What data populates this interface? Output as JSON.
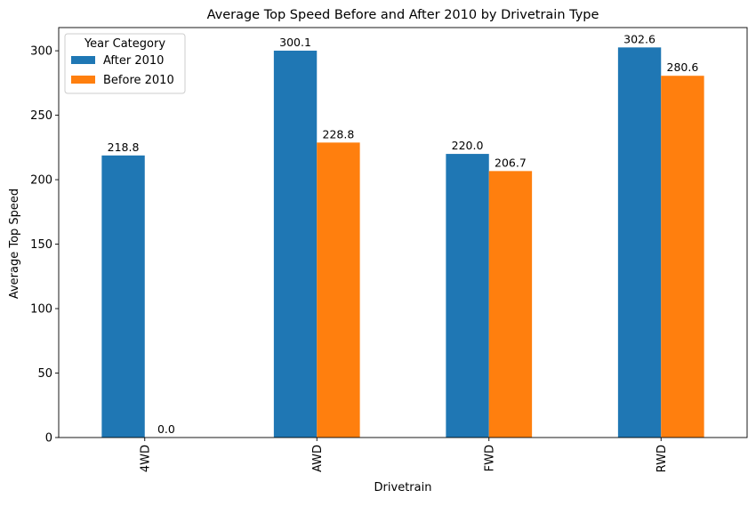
{
  "chart_data": {
    "type": "bar",
    "title": "Average Top Speed Before and After 2010 by Drivetrain Type",
    "xlabel": "Drivetrain",
    "ylabel": "Average Top Speed",
    "categories": [
      "4WD",
      "AWD",
      "FWD",
      "RWD"
    ],
    "series": [
      {
        "name": "After 2010",
        "values": [
          218.8,
          300.1,
          220.0,
          302.6
        ],
        "color": "#1f77b4"
      },
      {
        "name": "Before 2010",
        "values": [
          0.0,
          228.8,
          206.7,
          280.6
        ],
        "color": "#ff7f0e"
      }
    ],
    "data_labels": [
      [
        "218.8",
        "300.1",
        "220.0",
        "302.6"
      ],
      [
        "0.0",
        "228.8",
        "206.7",
        "280.6"
      ]
    ],
    "ylim": [
      0,
      318
    ],
    "yticks": [
      "0",
      "50",
      "100",
      "150",
      "200",
      "250",
      "300"
    ],
    "grid": false,
    "legend": {
      "title": "Year Category",
      "placement": "top-left"
    }
  }
}
